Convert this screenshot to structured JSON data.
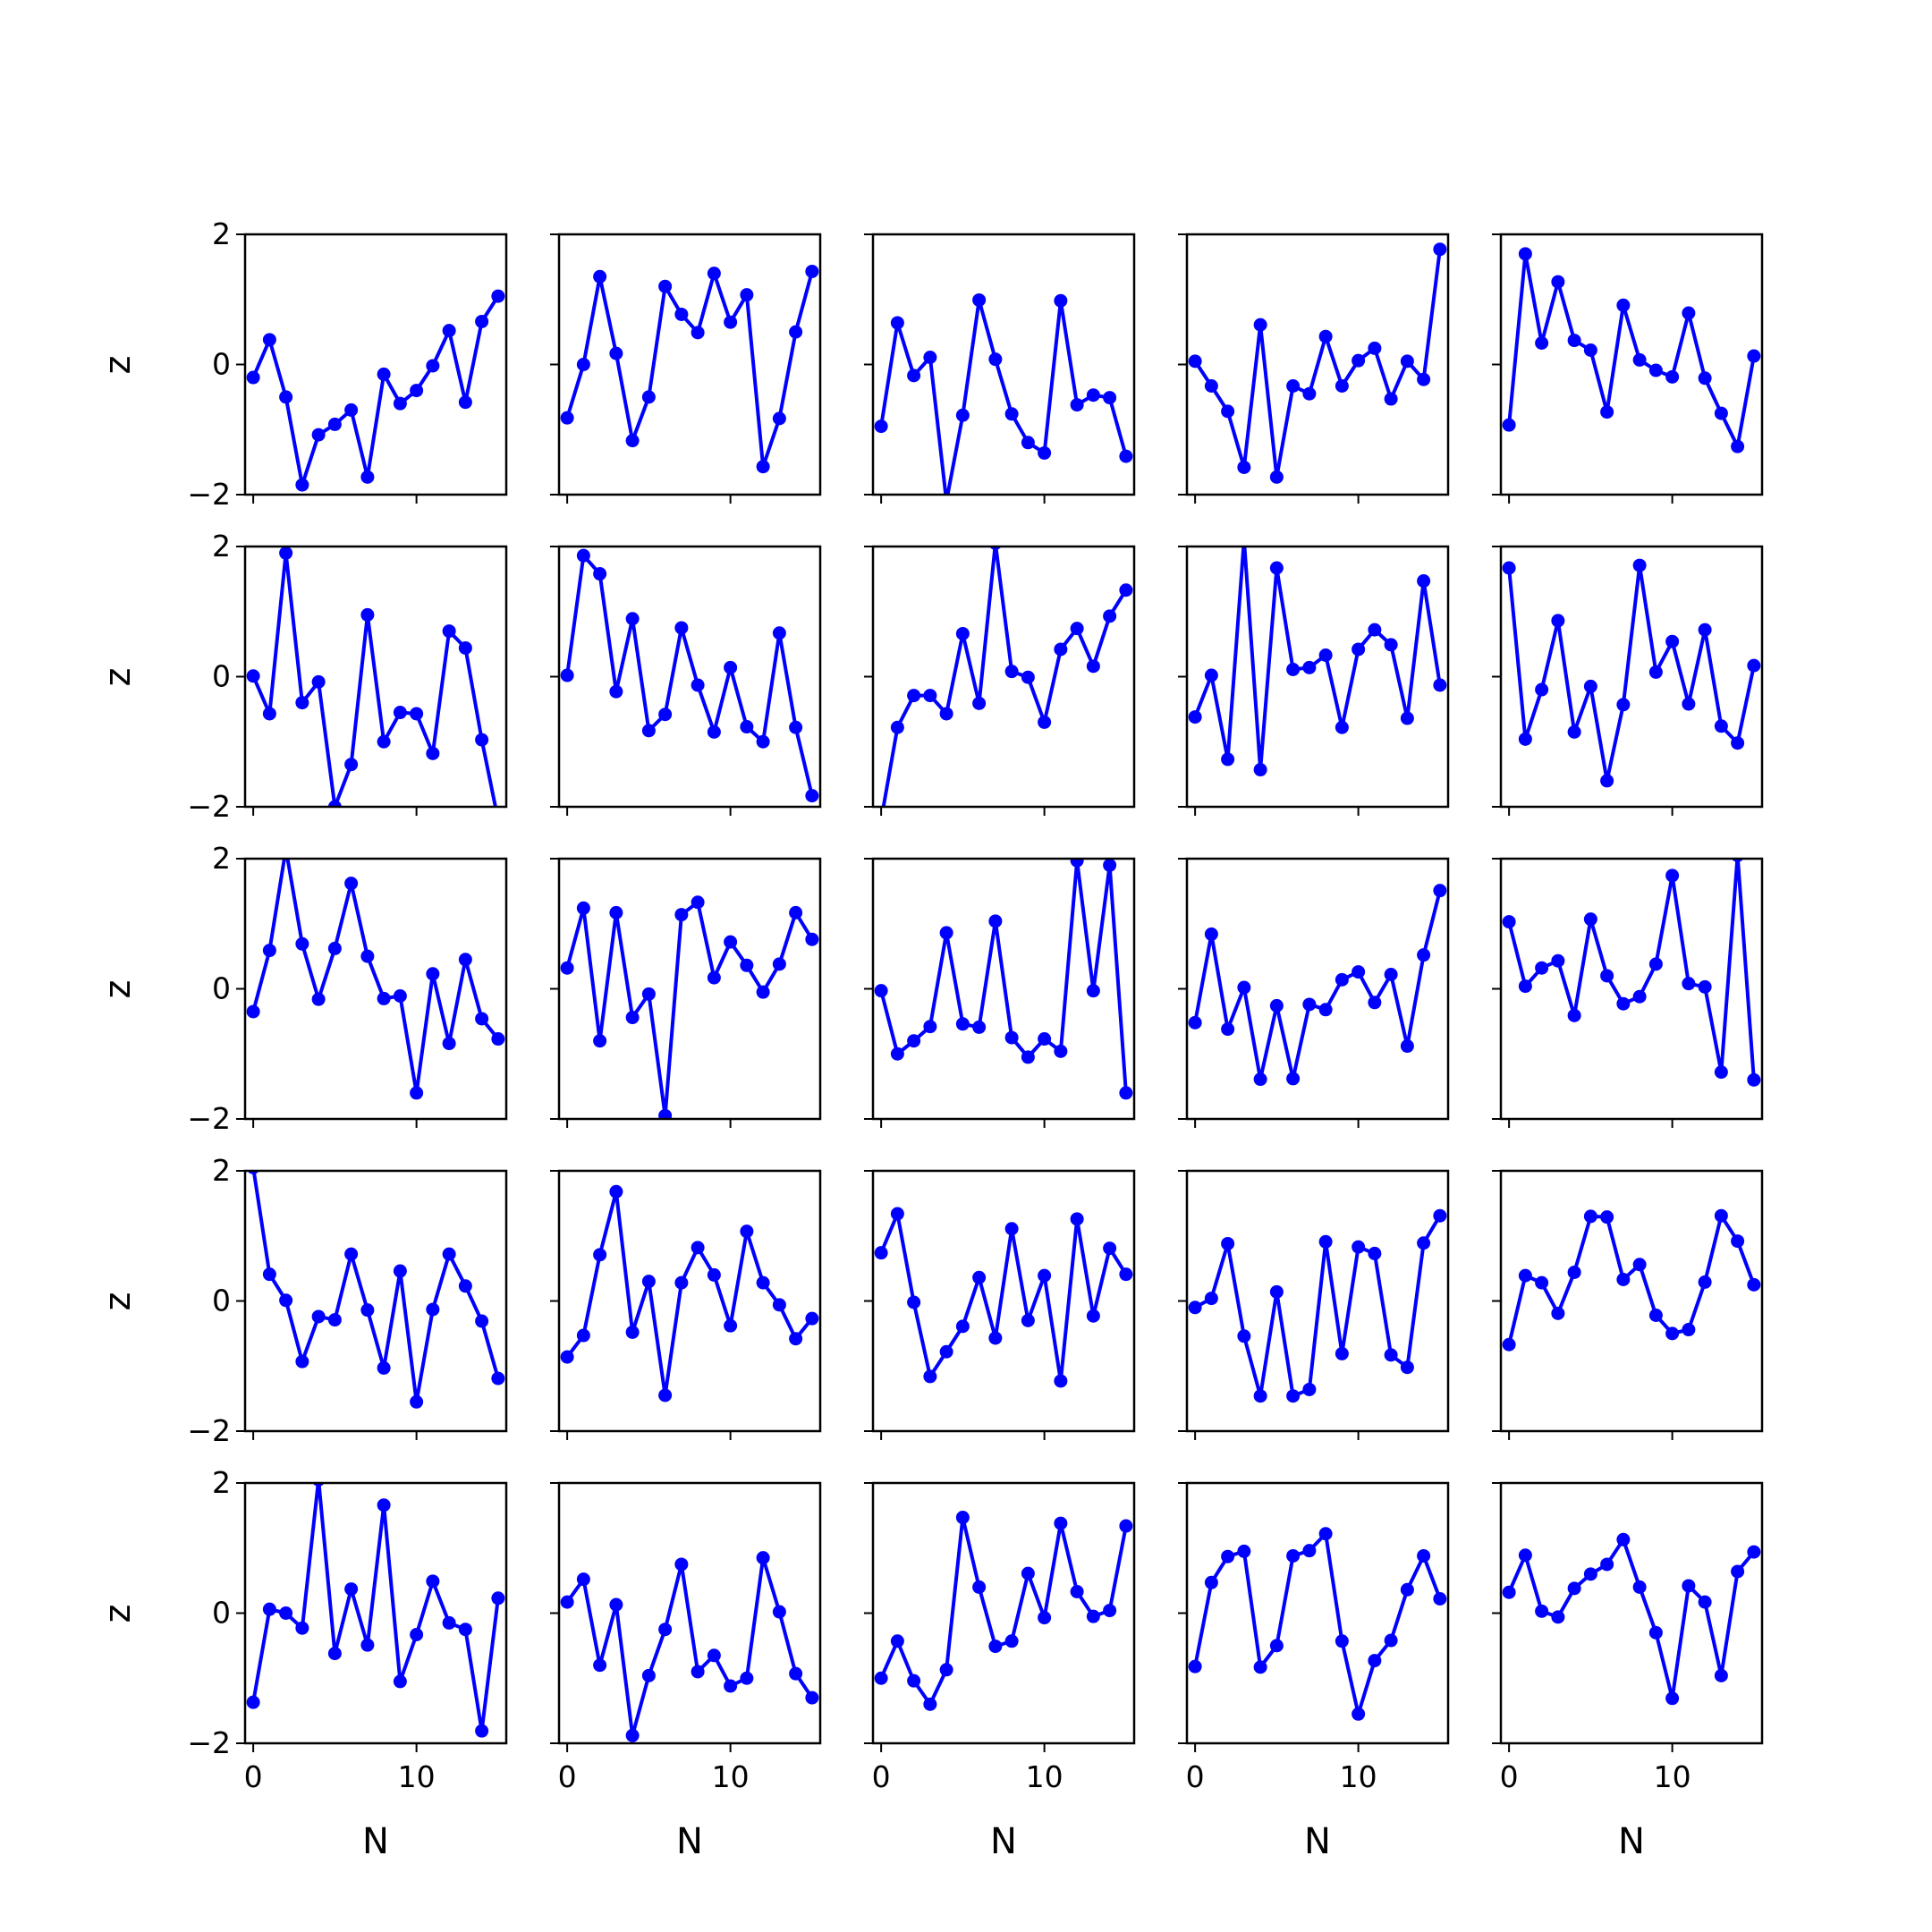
{
  "colors": {
    "line": "#0000ff",
    "axes": "#000000",
    "background": "#ffffff"
  },
  "chart_data": {
    "type": "line",
    "layout": "5x5 grid of subplots, shared x and y axes",
    "xlabel": "N",
    "ylabel": "z",
    "xlim": [
      -0.5,
      15.5
    ],
    "ylim": [
      -2,
      2
    ],
    "x_ticks": [
      0,
      10
    ],
    "x_tick_labels": [
      "0",
      "10"
    ],
    "y_ticks": [
      -2,
      0,
      2
    ],
    "y_tick_labels": [
      "−2",
      "0",
      "2"
    ],
    "grid": false,
    "x": [
      0,
      1,
      2,
      3,
      4,
      5,
      6,
      7,
      8,
      9,
      10,
      11,
      12,
      13,
      14,
      15
    ],
    "panels": [
      {
        "values": [
          -0.2,
          0.38,
          -0.5,
          -1.85,
          -1.08,
          -0.92,
          -0.7,
          -1.73,
          -0.15,
          -0.6,
          -0.4,
          -0.02,
          0.52,
          -0.58,
          0.66,
          1.05
        ]
      },
      {
        "values": [
          -0.82,
          0.0,
          1.35,
          0.17,
          -1.17,
          -0.5,
          1.2,
          0.77,
          0.49,
          1.4,
          0.65,
          1.07,
          -1.57,
          -0.83,
          0.5,
          1.43
        ]
      },
      {
        "values": [
          -0.95,
          0.64,
          -0.17,
          0.11,
          -2.1,
          -0.78,
          0.99,
          0.08,
          -0.76,
          -1.2,
          -1.36,
          0.98,
          -0.62,
          -0.47,
          -0.51,
          -1.41
        ]
      },
      {
        "values": [
          0.05,
          -0.33,
          -0.72,
          -1.58,
          0.61,
          -1.73,
          -0.33,
          -0.45,
          0.43,
          -0.33,
          0.06,
          0.25,
          -0.53,
          0.05,
          -0.23,
          1.77
        ]
      },
      {
        "values": [
          -0.93,
          1.7,
          0.33,
          1.27,
          0.37,
          0.22,
          -0.73,
          0.91,
          0.07,
          -0.09,
          -0.19,
          0.79,
          -0.21,
          -0.75,
          -1.26,
          0.13
        ]
      },
      {
        "values": [
          0.01,
          -0.57,
          1.9,
          -0.4,
          -0.08,
          -2.0,
          -1.35,
          0.95,
          -1.0,
          -0.55,
          -0.57,
          -1.18,
          0.7,
          0.44,
          -0.97,
          -2.2
        ]
      },
      {
        "values": [
          0.02,
          1.86,
          1.58,
          -0.23,
          0.89,
          -0.83,
          -0.58,
          0.75,
          -0.13,
          -0.85,
          0.14,
          -0.77,
          -1.0,
          0.67,
          -0.78,
          -1.83
        ]
      },
      {
        "values": [
          -2.2,
          -0.78,
          -0.29,
          -0.29,
          -0.57,
          0.66,
          -0.41,
          2.05,
          0.08,
          -0.01,
          -0.7,
          0.42,
          0.74,
          0.16,
          0.93,
          1.33
        ]
      },
      {
        "values": [
          -0.62,
          0.02,
          -1.27,
          2.1,
          -1.43,
          1.67,
          0.11,
          0.14,
          0.33,
          -0.78,
          0.42,
          0.72,
          0.49,
          -0.64,
          1.47,
          -0.13
        ]
      },
      {
        "values": [
          1.67,
          -0.96,
          -0.2,
          0.86,
          -0.85,
          -0.15,
          -1.6,
          -0.43,
          1.71,
          0.07,
          0.54,
          -0.42,
          0.72,
          -0.76,
          -1.02,
          0.17
        ]
      },
      {
        "values": [
          -0.35,
          0.59,
          2.15,
          0.69,
          -0.16,
          0.62,
          1.62,
          0.5,
          -0.15,
          -0.11,
          -1.6,
          0.23,
          -0.84,
          0.45,
          -0.46,
          -0.77
        ]
      },
      {
        "values": [
          0.32,
          1.24,
          -0.8,
          1.17,
          -0.44,
          -0.08,
          -1.95,
          1.14,
          1.33,
          0.17,
          0.72,
          0.36,
          -0.05,
          0.38,
          1.17,
          0.76
        ]
      },
      {
        "values": [
          -0.03,
          -1.0,
          -0.8,
          -0.58,
          0.86,
          -0.54,
          -0.59,
          1.04,
          -0.75,
          -1.05,
          -0.77,
          -0.96,
          1.97,
          -0.03,
          1.9,
          -1.6
        ]
      },
      {
        "values": [
          -0.52,
          0.84,
          -0.62,
          0.02,
          -1.39,
          -0.26,
          -1.38,
          -0.24,
          -0.32,
          0.14,
          0.26,
          -0.21,
          0.22,
          -0.88,
          0.52,
          1.51
        ]
      },
      {
        "values": [
          1.03,
          0.04,
          0.32,
          0.43,
          -0.41,
          1.07,
          0.2,
          -0.23,
          -0.12,
          0.38,
          1.74,
          0.08,
          0.03,
          -1.28,
          2.05,
          -1.4
        ]
      },
      {
        "values": [
          2.05,
          0.41,
          0.01,
          -0.93,
          -0.24,
          -0.29,
          0.72,
          -0.14,
          -1.03,
          0.46,
          -1.55,
          -0.13,
          0.72,
          0.23,
          -0.31,
          -1.19
        ]
      },
      {
        "values": [
          -0.86,
          -0.53,
          0.71,
          1.68,
          -0.48,
          0.3,
          -1.45,
          0.28,
          0.82,
          0.4,
          -0.38,
          1.07,
          0.28,
          -0.06,
          -0.58,
          -0.27
        ]
      },
      {
        "values": [
          0.74,
          1.34,
          -0.02,
          -1.16,
          -0.78,
          -0.39,
          0.36,
          -0.57,
          1.11,
          -0.3,
          0.39,
          -1.23,
          1.26,
          -0.23,
          0.81,
          0.41
        ]
      },
      {
        "values": [
          -0.1,
          0.04,
          0.88,
          -0.54,
          -1.46,
          0.14,
          -1.46,
          -1.36,
          0.91,
          -0.81,
          0.83,
          0.73,
          -0.83,
          -1.02,
          0.89,
          1.31
        ]
      },
      {
        "values": [
          -0.67,
          0.39,
          0.28,
          -0.19,
          0.44,
          1.3,
          1.29,
          0.33,
          0.56,
          -0.22,
          -0.5,
          -0.44,
          0.29,
          1.31,
          0.92,
          0.25
        ]
      },
      {
        "values": [
          -1.37,
          0.06,
          0.0,
          -0.23,
          2.05,
          -0.62,
          0.37,
          -0.49,
          1.66,
          -1.05,
          -0.33,
          0.49,
          -0.15,
          -0.25,
          -1.81,
          0.23
        ]
      },
      {
        "values": [
          0.17,
          0.52,
          -0.8,
          0.13,
          -1.88,
          -0.96,
          -0.25,
          0.75,
          -0.9,
          -0.65,
          -1.12,
          -1.0,
          0.85,
          0.02,
          -0.93,
          -1.3
        ]
      },
      {
        "values": [
          -1.0,
          -0.43,
          -1.04,
          -1.4,
          -0.87,
          1.47,
          0.4,
          -0.51,
          -0.43,
          0.61,
          -0.07,
          1.38,
          0.33,
          -0.05,
          0.04,
          1.34
        ]
      },
      {
        "values": [
          -0.82,
          0.47,
          0.87,
          0.95,
          -0.83,
          -0.5,
          0.88,
          0.96,
          1.22,
          -0.43,
          -1.55,
          -0.73,
          -0.42,
          0.36,
          0.88,
          0.22
        ]
      },
      {
        "values": [
          0.32,
          0.89,
          0.03,
          -0.06,
          0.38,
          0.6,
          0.75,
          1.13,
          0.4,
          -0.3,
          -1.31,
          0.42,
          0.17,
          -0.96,
          0.64,
          0.94
        ]
      }
    ]
  }
}
